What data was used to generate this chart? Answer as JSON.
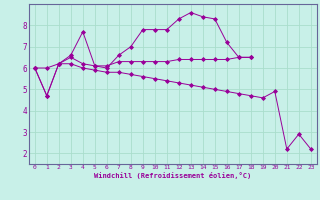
{
  "xlabel": "Windchill (Refroidissement éolien,°C)",
  "bg_color": "#c8f0e8",
  "plot_bg_color": "#c8f0e8",
  "grid_color": "#aaddcc",
  "line_color": "#990099",
  "x": [
    0,
    1,
    2,
    3,
    4,
    5,
    6,
    7,
    8,
    9,
    10,
    11,
    12,
    13,
    14,
    15,
    16,
    17,
    18,
    19,
    20,
    21,
    22,
    23
  ],
  "line1": [
    6.0,
    4.7,
    6.2,
    6.6,
    7.7,
    6.1,
    6.0,
    6.6,
    7.0,
    7.8,
    7.8,
    7.8,
    8.3,
    8.6,
    8.4,
    8.3,
    7.2,
    6.5,
    6.5,
    null,
    null,
    null,
    null,
    null
  ],
  "line2": [
    6.0,
    6.0,
    6.2,
    6.5,
    6.2,
    6.1,
    6.1,
    6.3,
    6.3,
    6.3,
    6.3,
    6.3,
    6.4,
    6.4,
    6.4,
    6.4,
    6.4,
    6.5,
    6.5,
    null,
    null,
    null,
    null,
    null
  ],
  "line3": [
    6.0,
    4.7,
    6.2,
    6.2,
    6.0,
    5.9,
    5.8,
    5.8,
    5.7,
    5.6,
    5.5,
    5.4,
    5.3,
    5.2,
    5.1,
    5.0,
    4.9,
    4.8,
    4.7,
    4.6,
    4.9,
    2.2,
    2.9,
    2.2
  ],
  "ylim": [
    1.5,
    9.0
  ],
  "xlim": [
    -0.5,
    23.5
  ],
  "yticks": [
    2,
    3,
    4,
    5,
    6,
    7,
    8
  ],
  "xticks": [
    0,
    1,
    2,
    3,
    4,
    5,
    6,
    7,
    8,
    9,
    10,
    11,
    12,
    13,
    14,
    15,
    16,
    17,
    18,
    19,
    20,
    21,
    22,
    23
  ]
}
